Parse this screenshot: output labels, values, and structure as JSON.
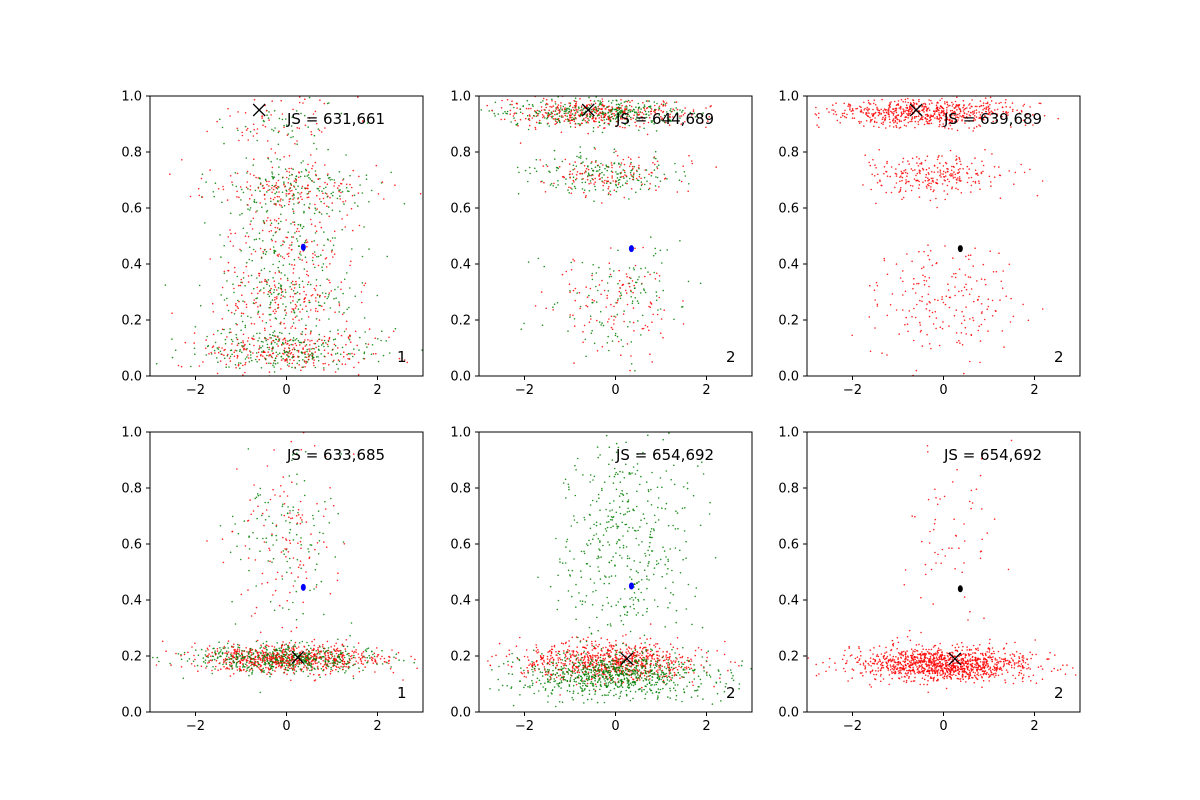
{
  "chart_data": [
    {
      "type": "scatter",
      "panel": "top-left",
      "annotation": "JS = 631,661",
      "corner_label": "1",
      "xlim": [
        -3,
        3
      ],
      "ylim": [
        0,
        1
      ],
      "xticks": [
        -2,
        0,
        2
      ],
      "yticks": [
        0.0,
        0.2,
        0.4,
        0.6,
        0.8,
        1.0
      ],
      "xtick_labels": [
        "−2",
        "0",
        "2"
      ],
      "ytick_labels": [
        "0.0",
        "0.2",
        "0.4",
        "0.6",
        "0.8",
        "1.0"
      ],
      "series_colors": [
        "#ff0000",
        "#007f00"
      ],
      "clusters": [
        {
          "cx": -0.2,
          "cy": 0.9,
          "sx": 0.75,
          "sy": 0.05,
          "n": 110,
          "colors": [
            "#ff0000",
            "#007f00"
          ]
        },
        {
          "cx": 0.0,
          "cy": 0.67,
          "sx": 0.9,
          "sy": 0.05,
          "n": 360,
          "colors": [
            "#ff0000",
            "#007f00"
          ]
        },
        {
          "cx": 0.0,
          "cy": 0.45,
          "sx": 0.8,
          "sy": 0.08,
          "n": 250,
          "colors": [
            "#ff0000",
            "#007f00"
          ]
        },
        {
          "cx": 0.0,
          "cy": 0.27,
          "sx": 0.8,
          "sy": 0.06,
          "n": 280,
          "colors": [
            "#ff0000",
            "#007f00"
          ]
        },
        {
          "cx": 0.0,
          "cy": 0.09,
          "sx": 0.95,
          "sy": 0.04,
          "n": 520,
          "colors": [
            "#ff0000",
            "#007f00"
          ]
        }
      ],
      "cross": {
        "x": -0.6,
        "y": 0.95,
        "color": "#000000"
      },
      "center": {
        "x": 0.37,
        "y": 0.46,
        "color": "#0000ff"
      }
    },
    {
      "type": "scatter",
      "panel": "top-middle",
      "annotation": "JS = 644,689",
      "corner_label": "2",
      "xlim": [
        -3,
        3
      ],
      "ylim": [
        0,
        1
      ],
      "xticks": [
        -2,
        0,
        2
      ],
      "yticks": [
        0.0,
        0.2,
        0.4,
        0.6,
        0.8,
        1.0
      ],
      "xtick_labels": [
        "−2",
        "0",
        "2"
      ],
      "ytick_labels": [
        "0.0",
        "0.2",
        "0.4",
        "0.6",
        "0.8",
        "1.0"
      ],
      "series_colors": [
        "#ff0000",
        "#007f00"
      ],
      "clusters": [
        {
          "cx": -0.4,
          "cy": 0.94,
          "sx": 1.0,
          "sy": 0.025,
          "n": 750,
          "colors": [
            "#ff0000",
            "#007f00"
          ]
        },
        {
          "cx": -0.2,
          "cy": 0.72,
          "sx": 0.8,
          "sy": 0.035,
          "n": 320,
          "colors": [
            "#ff0000",
            "#007f00"
          ]
        },
        {
          "cx": 0.0,
          "cy": 0.26,
          "sx": 0.75,
          "sy": 0.1,
          "n": 240,
          "colors": [
            "#ff0000",
            "#007f00"
          ]
        }
      ],
      "cross": {
        "x": -0.6,
        "y": 0.95,
        "color": "#000000"
      },
      "center": {
        "x": 0.35,
        "y": 0.455,
        "color": "#0000ff"
      }
    },
    {
      "type": "scatter",
      "panel": "top-right",
      "annotation": "JS = 639,689",
      "corner_label": "2",
      "xlim": [
        -3,
        3
      ],
      "ylim": [
        0,
        1
      ],
      "xticks": [
        -2,
        0,
        2
      ],
      "yticks": [
        0.0,
        0.2,
        0.4,
        0.6,
        0.8,
        1.0
      ],
      "xtick_labels": [
        "−2",
        "0",
        "2"
      ],
      "ytick_labels": [
        "0.0",
        "0.2",
        "0.4",
        "0.6",
        "0.8",
        "1.0"
      ],
      "series_colors": [
        "#ff0000"
      ],
      "clusters": [
        {
          "cx": -0.4,
          "cy": 0.94,
          "sx": 1.0,
          "sy": 0.025,
          "n": 650,
          "colors": [
            "#ff0000"
          ]
        },
        {
          "cx": -0.2,
          "cy": 0.72,
          "sx": 0.8,
          "sy": 0.035,
          "n": 260,
          "colors": [
            "#ff0000"
          ]
        },
        {
          "cx": 0.0,
          "cy": 0.26,
          "sx": 0.75,
          "sy": 0.1,
          "n": 200,
          "colors": [
            "#ff0000"
          ]
        }
      ],
      "cross": {
        "x": -0.6,
        "y": 0.95,
        "color": "#000000"
      },
      "center": {
        "x": 0.37,
        "y": 0.455,
        "color": "#000000"
      }
    },
    {
      "type": "scatter",
      "panel": "bottom-left",
      "annotation": "JS = 633,685",
      "corner_label": "1",
      "xlim": [
        -3,
        3
      ],
      "ylim": [
        0,
        1
      ],
      "xticks": [
        -2,
        0,
        2
      ],
      "yticks": [
        0.0,
        0.2,
        0.4,
        0.6,
        0.8,
        1.0
      ],
      "xtick_labels": [
        "−2",
        "0",
        "2"
      ],
      "ytick_labels": [
        "0.0",
        "0.2",
        "0.4",
        "0.6",
        "0.8",
        "1.0"
      ],
      "series_colors": [
        "#ff0000",
        "#007f00"
      ],
      "clusters": [
        {
          "cx": 0.0,
          "cy": 0.19,
          "sx": 1.0,
          "sy": 0.025,
          "n": 1300,
          "colors": [
            "#ff0000",
            "#007f00"
          ]
        },
        {
          "cx": 0.0,
          "cy": 0.62,
          "sx": 0.6,
          "sy": 0.15,
          "n": 240,
          "colors": [
            "#ff0000",
            "#007f00"
          ]
        }
      ],
      "cross": {
        "x": 0.25,
        "y": 0.195,
        "color": "#000000"
      },
      "center": {
        "x": 0.37,
        "y": 0.445,
        "color": "#0000ff"
      }
    },
    {
      "type": "scatter",
      "panel": "bottom-middle",
      "annotation": "JS = 654,692",
      "corner_label": "2",
      "xlim": [
        -3,
        3
      ],
      "ylim": [
        0,
        1
      ],
      "xticks": [
        -2,
        0,
        2
      ],
      "yticks": [
        0.0,
        0.2,
        0.4,
        0.6,
        0.8,
        1.0
      ],
      "xtick_labels": [
        "−2",
        "0",
        "2"
      ],
      "ytick_labels": [
        "0.0",
        "0.2",
        "0.4",
        "0.6",
        "0.8",
        "1.0"
      ],
      "series_colors": [
        "#ff0000",
        "#007f00"
      ],
      "clusters": [
        {
          "cx": -0.1,
          "cy": 0.18,
          "sx": 1.0,
          "sy": 0.035,
          "n": 800,
          "colors": [
            "#ff0000"
          ]
        },
        {
          "cx": 0.0,
          "cy": 0.13,
          "sx": 1.0,
          "sy": 0.04,
          "n": 800,
          "colors": [
            "#007f00"
          ]
        },
        {
          "cx": 0.2,
          "cy": 0.6,
          "sx": 0.7,
          "sy": 0.18,
          "n": 420,
          "colors": [
            "#007f00"
          ]
        }
      ],
      "cross": {
        "x": 0.25,
        "y": 0.19,
        "color": "#000000"
      },
      "center": {
        "x": 0.35,
        "y": 0.45,
        "color": "#0000ff"
      }
    },
    {
      "type": "scatter",
      "panel": "bottom-right",
      "annotation": "JS = 654,692",
      "corner_label": "2",
      "xlim": [
        -3,
        3
      ],
      "ylim": [
        0,
        1
      ],
      "xticks": [
        -2,
        0,
        2
      ],
      "yticks": [
        0.0,
        0.2,
        0.4,
        0.6,
        0.8,
        1.0
      ],
      "xtick_labels": [
        "−2",
        "0",
        "2"
      ],
      "ytick_labels": [
        "0.0",
        "0.2",
        "0.4",
        "0.6",
        "0.8",
        "1.0"
      ],
      "series_colors": [
        "#ff0000"
      ],
      "clusters": [
        {
          "cx": 0.0,
          "cy": 0.17,
          "sx": 1.0,
          "sy": 0.03,
          "n": 1200,
          "colors": [
            "#ff0000"
          ]
        },
        {
          "cx": 0.2,
          "cy": 0.55,
          "sx": 0.55,
          "sy": 0.2,
          "n": 70,
          "colors": [
            "#ff0000"
          ]
        }
      ],
      "cross": {
        "x": 0.25,
        "y": 0.19,
        "color": "#000000"
      },
      "center": {
        "x": 0.37,
        "y": 0.44,
        "color": "#000000"
      }
    }
  ]
}
